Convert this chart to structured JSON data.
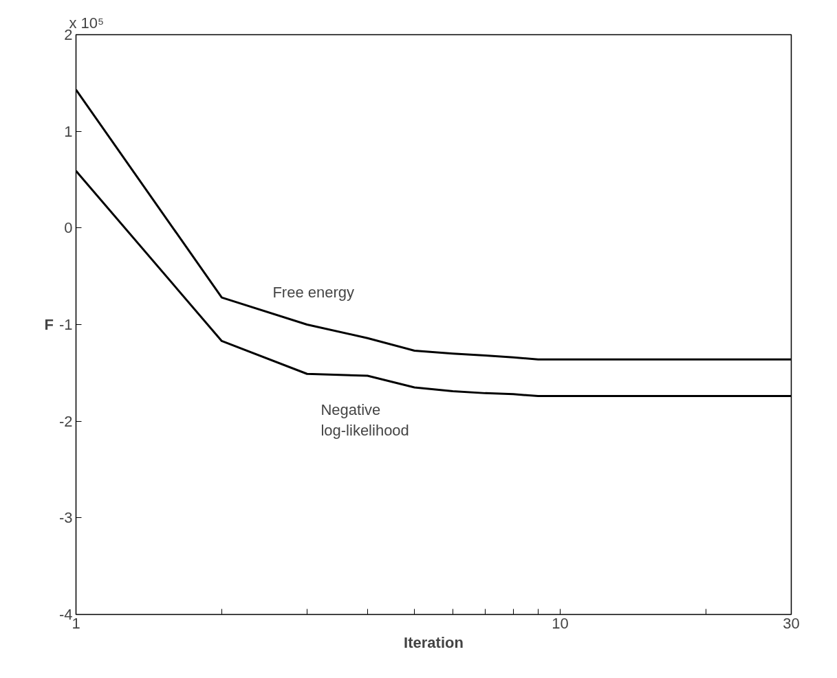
{
  "chart_data": {
    "type": "line",
    "xlabel": "Iteration",
    "ylabel": "F",
    "log": "x",
    "grid": false,
    "marker": "none",
    "line_style": "solid",
    "annotations": [
      "x 10⁵"
    ],
    "x": [
      1,
      2,
      3,
      4,
      5,
      6,
      7,
      8,
      9,
      10,
      11,
      12,
      13,
      14,
      15,
      16,
      17,
      18,
      19,
      20,
      21,
      22,
      23,
      24,
      25,
      26,
      27,
      28,
      29,
      30
    ],
    "xlim": [
      1,
      30
    ],
    "ylim": [
      -4,
      2
    ],
    "xticks": [
      1,
      {
        "value": 2,
        "label": null
      },
      {
        "value": 3,
        "label": null
      },
      {
        "value": 4,
        "label": null
      },
      {
        "value": 5,
        "label": null
      },
      {
        "value": 6,
        "label": null
      },
      {
        "value": 7,
        "label": null
      },
      {
        "value": 8,
        "label": null
      },
      {
        "value": 9,
        "label": null
      },
      10,
      {
        "value": 20,
        "label": null
      },
      30
    ],
    "yticks": [
      -4,
      -3,
      -2,
      -1,
      0,
      1,
      2
    ],
    "series": [
      {
        "name": "Free energy",
        "color": "#000000",
        "values": [
          1.43,
          -0.72,
          -1.0,
          -1.14,
          -1.27,
          -1.3,
          -1.32,
          -1.34,
          -1.36,
          -1.36,
          -1.36,
          -1.36,
          -1.36,
          -1.36,
          -1.36,
          -1.36,
          -1.36,
          -1.36,
          -1.36,
          -1.36,
          -1.36,
          -1.36,
          -1.36,
          -1.36,
          -1.36,
          -1.36,
          -1.36,
          -1.36,
          -1.36,
          -1.36
        ]
      },
      {
        "name": "Negative\nlog-likelihood",
        "color": "#000000",
        "values": [
          0.59,
          -1.17,
          -1.51,
          -1.53,
          -1.65,
          -1.69,
          -1.71,
          -1.72,
          -1.74,
          -1.74,
          -1.74,
          -1.74,
          -1.74,
          -1.74,
          -1.74,
          -1.74,
          -1.74,
          -1.74,
          -1.74,
          -1.74,
          -1.74,
          -1.74,
          -1.74,
          -1.74,
          -1.74,
          -1.74,
          -1.74,
          -1.74,
          -1.74,
          -1.74
        ]
      }
    ]
  }
}
